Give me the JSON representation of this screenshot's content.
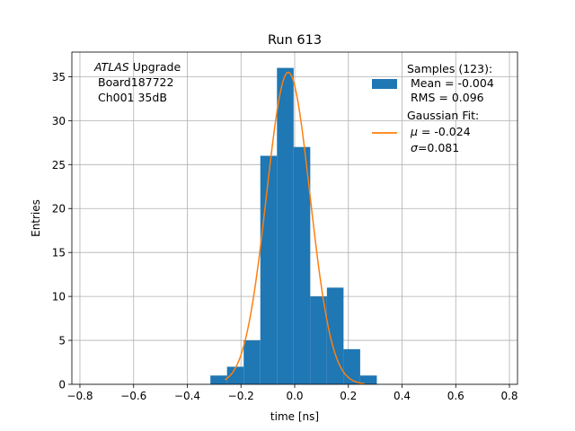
{
  "chart_data": {
    "type": "bar",
    "title": "Run 613",
    "xlabel": "time [ns]",
    "ylabel": "Entries",
    "xlim": [
      -0.83,
      0.83
    ],
    "ylim": [
      0,
      37.8
    ],
    "xticks": [
      -0.8,
      -0.6,
      -0.4,
      -0.2,
      0.0,
      0.2,
      0.4,
      0.6,
      0.8
    ],
    "xtick_labels": [
      "−0.8",
      "−0.6",
      "−0.4",
      "−0.2",
      "0.0",
      "0.2",
      "0.4",
      "0.6",
      "0.8"
    ],
    "yticks": [
      0,
      5,
      10,
      15,
      20,
      25,
      30,
      35
    ],
    "grid": true,
    "annotation": {
      "italic": "ATLAS",
      "rest": " Upgrade",
      "line2": "Board187722",
      "line3": "Ch001 35dB"
    },
    "histogram": {
      "color": "#1f77b4",
      "bin_edges": [
        -0.314,
        -0.252,
        -0.19,
        -0.128,
        -0.066,
        -0.004,
        0.058,
        0.12,
        0.182,
        0.244,
        0.306
      ],
      "counts": [
        1,
        2,
        5,
        26,
        36,
        27,
        10,
        11,
        4,
        1
      ]
    },
    "fit": {
      "color": "#ff7f0e",
      "mu": -0.024,
      "sigma": 0.081,
      "amplitude": 35.5,
      "x_range": [
        -0.26,
        0.26
      ]
    },
    "legend": {
      "position": "upper right",
      "samples_line1": "Samples (123):",
      "samples_line2": "Mean = -0.004",
      "samples_line3": "RMS = 0.096",
      "fit_line1": "Gaussian Fit:",
      "fit_mu_symbol": "μ",
      "fit_mu_value": " = -0.024",
      "fit_sigma_symbol": "σ",
      "fit_sigma_value": "=0.081"
    }
  }
}
